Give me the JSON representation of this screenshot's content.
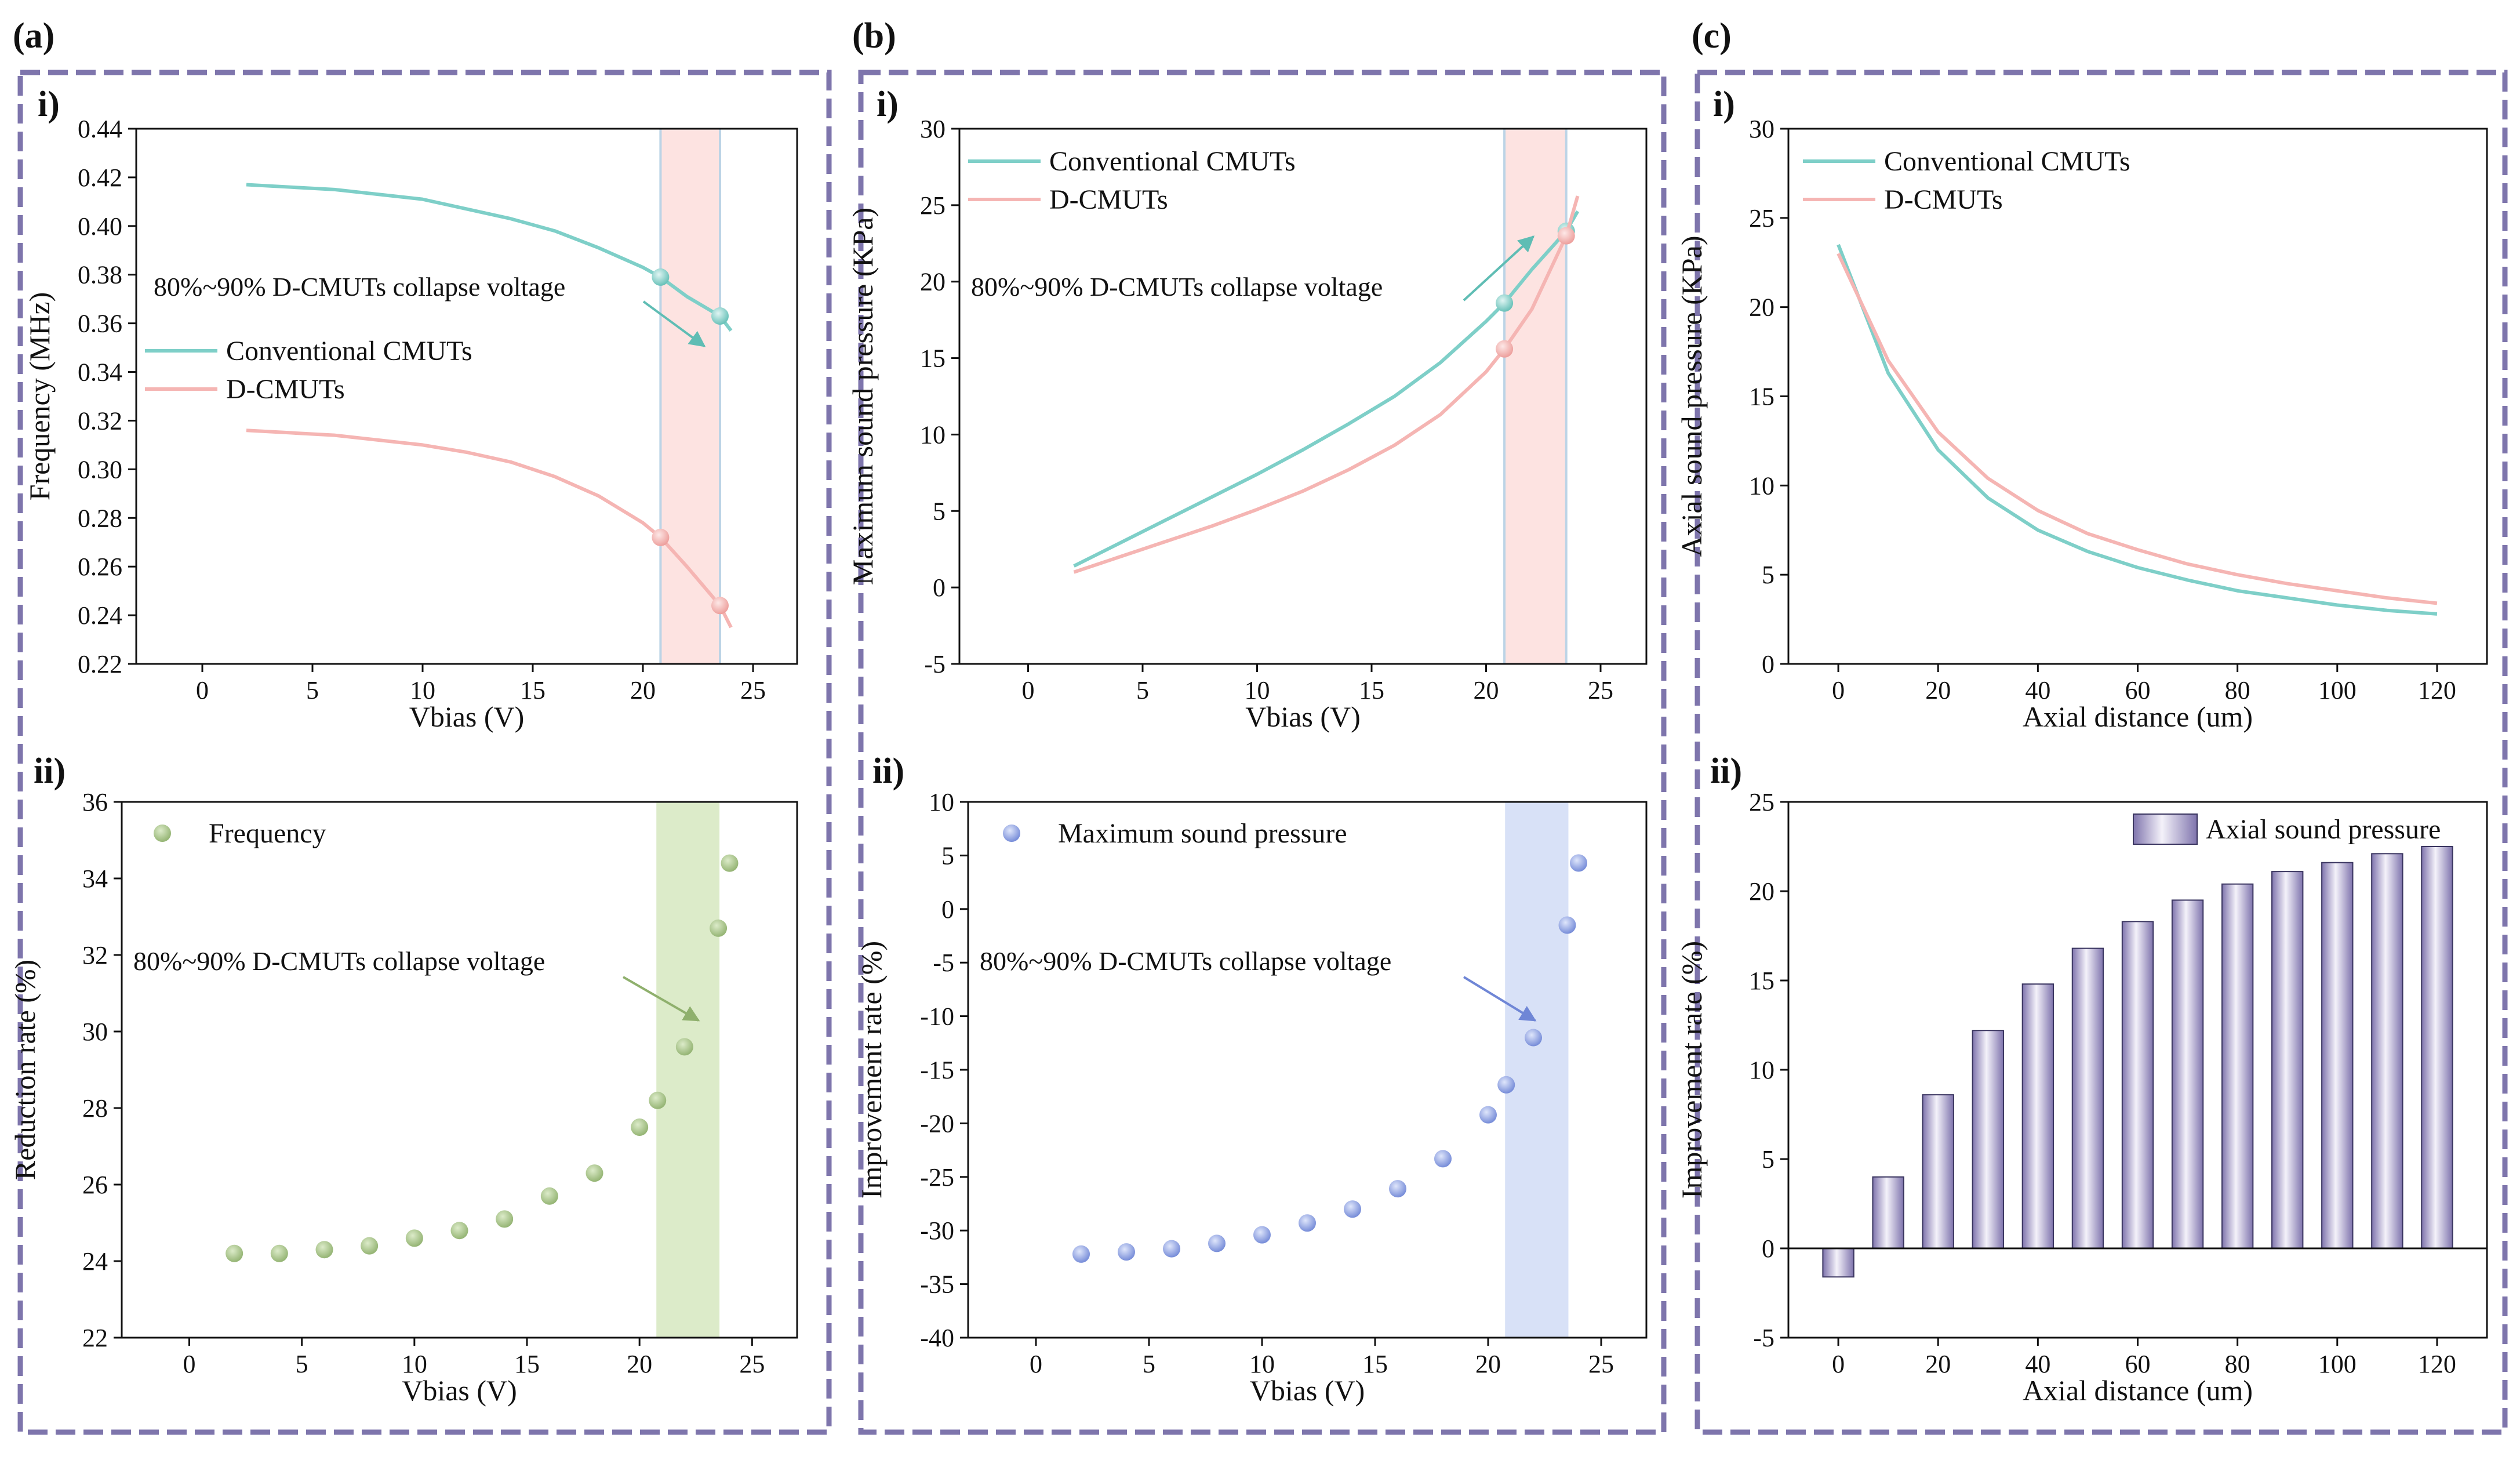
{
  "panels": [
    {
      "letter": "(a)",
      "sub_top": "i)",
      "sub_bottom": "ii)"
    },
    {
      "letter": "(b)",
      "sub_top": "i)",
      "sub_bottom": "ii)"
    },
    {
      "letter": "(c)",
      "sub_top": "i)",
      "sub_bottom": "ii)"
    }
  ],
  "colors": {
    "conventional": "#7ecfc8",
    "dcmut": "#f5b5b3",
    "frequency_dots": "#a7c48a",
    "pressure_dots": "#8fa3e0",
    "bar": "#b7aed3",
    "frame": "#7e75ac",
    "band_red": "#fde3e1",
    "band_green": "#dcebc9",
    "band_blue": "#d8e1f7",
    "band_edge": "#bcd4e6"
  },
  "chart_data": [
    {
      "id": "a-i",
      "type": "line",
      "xlabel": "Vbias (V)",
      "ylabel": "Frequency (MHz)",
      "xlim": [
        -3,
        27
      ],
      "ylim": [
        0.22,
        0.44
      ],
      "xticks": [
        0,
        5,
        10,
        15,
        20,
        25
      ],
      "yticks": [
        0.22,
        0.24,
        0.26,
        0.28,
        0.3,
        0.32,
        0.34,
        0.36,
        0.38,
        0.4,
        0.42,
        0.44
      ],
      "tick_decimals": 2,
      "band": [
        20.8,
        23.5
      ],
      "annotation": "80%~90% D-CMUTs collapse voltage",
      "series": [
        {
          "name": "Conventional CMUTs",
          "color": "conventional",
          "x": [
            2,
            4,
            6,
            8,
            10,
            12,
            14,
            16,
            18,
            20,
            20.8,
            22,
            23.5,
            24
          ],
          "y": [
            0.417,
            0.416,
            0.415,
            0.413,
            0.411,
            0.407,
            0.403,
            0.398,
            0.391,
            0.383,
            0.379,
            0.371,
            0.363,
            0.357
          ],
          "markers": [
            [
              20.8,
              0.379
            ],
            [
              23.5,
              0.363
            ]
          ]
        },
        {
          "name": "D-CMUTs",
          "color": "dcmut",
          "x": [
            2,
            4,
            6,
            8,
            10,
            12,
            14,
            16,
            18,
            20,
            20.8,
            22,
            23.5,
            24
          ],
          "y": [
            0.316,
            0.315,
            0.314,
            0.312,
            0.31,
            0.307,
            0.303,
            0.297,
            0.289,
            0.278,
            0.272,
            0.26,
            0.244,
            0.235
          ],
          "markers": [
            [
              20.8,
              0.272
            ],
            [
              23.5,
              0.244
            ]
          ]
        }
      ]
    },
    {
      "id": "a-ii",
      "type": "scatter",
      "xlabel": "Vbias (V)",
      "ylabel": "Reduction rate (%)",
      "xlim": [
        -3,
        27
      ],
      "ylim": [
        22,
        36
      ],
      "xticks": [
        0,
        5,
        10,
        15,
        20,
        25
      ],
      "yticks": [
        22,
        24,
        26,
        28,
        30,
        32,
        34,
        36
      ],
      "tick_decimals": 0,
      "band": [
        20.8,
        23.5
      ],
      "annotation": "80%~90% D-CMUTs collapse voltage",
      "series": [
        {
          "name": "Frequency",
          "color": "frequency_dots",
          "x": [
            2,
            4,
            6,
            8,
            10,
            12,
            14,
            16,
            18,
            20,
            20.8,
            22,
            23.5,
            24
          ],
          "y": [
            24.2,
            24.2,
            24.3,
            24.4,
            24.6,
            24.8,
            25.1,
            25.7,
            26.3,
            27.5,
            28.2,
            29.6,
            32.7,
            34.4
          ]
        }
      ]
    },
    {
      "id": "b-i",
      "type": "line",
      "xlabel": "Vbias (V)",
      "ylabel": "Maximum sound pressure (KPa)",
      "xlim": [
        -3,
        27
      ],
      "ylim": [
        -5,
        30
      ],
      "xticks": [
        0,
        5,
        10,
        15,
        20,
        25
      ],
      "yticks": [
        -5,
        0,
        5,
        10,
        15,
        20,
        25,
        30
      ],
      "tick_decimals": 0,
      "band": [
        20.8,
        23.5
      ],
      "annotation": "80%~90% D-CMUTs collapse voltage",
      "series": [
        {
          "name": "Conventional CMUTs",
          "color": "conventional",
          "x": [
            2,
            4,
            6,
            8,
            10,
            12,
            14,
            16,
            18,
            20,
            20.8,
            22,
            23.5,
            24
          ],
          "y": [
            1.4,
            2.9,
            4.4,
            5.9,
            7.4,
            9.0,
            10.7,
            12.5,
            14.7,
            17.4,
            18.6,
            20.8,
            23.3,
            24.6
          ],
          "markers": [
            [
              20.8,
              18.6
            ],
            [
              23.5,
              23.3
            ]
          ]
        },
        {
          "name": "D-CMUTs",
          "color": "dcmut",
          "x": [
            2,
            4,
            6,
            8,
            10,
            12,
            14,
            16,
            18,
            20,
            20.8,
            22,
            23.5,
            24
          ],
          "y": [
            1.0,
            2.0,
            3.0,
            4.0,
            5.1,
            6.3,
            7.7,
            9.3,
            11.3,
            14.1,
            15.6,
            18.2,
            23.0,
            25.6
          ],
          "markers": [
            [
              20.8,
              15.6
            ],
            [
              23.5,
              23.0
            ]
          ]
        }
      ]
    },
    {
      "id": "b-ii",
      "type": "scatter",
      "xlabel": "Vbias (V)",
      "ylabel": "Improvement rate (%)",
      "xlim": [
        -3,
        27
      ],
      "ylim": [
        -40,
        10
      ],
      "xticks": [
        0,
        5,
        10,
        15,
        20,
        25
      ],
      "yticks": [
        -40,
        -35,
        -30,
        -25,
        -20,
        -15,
        -10,
        -5,
        0,
        5,
        10
      ],
      "tick_decimals": 0,
      "band": [
        20.8,
        23.5
      ],
      "annotation": "80%~90% D-CMUTs collapse voltage",
      "series": [
        {
          "name": "Maximum sound pressure",
          "color": "pressure_dots",
          "x": [
            2,
            4,
            6,
            8,
            10,
            12,
            14,
            16,
            18,
            20,
            20.8,
            22,
            23.5,
            24
          ],
          "y": [
            -32.2,
            -32.0,
            -31.7,
            -31.2,
            -30.4,
            -29.3,
            -28.0,
            -26.1,
            -23.3,
            -19.2,
            -16.4,
            -12.0,
            -1.5,
            4.3
          ]
        }
      ]
    },
    {
      "id": "c-i",
      "type": "line",
      "xlabel": "Axial distance (um)",
      "ylabel": "Axial sound pressure (KPa)",
      "xlim": [
        -10,
        130
      ],
      "ylim": [
        0,
        30
      ],
      "xticks": [
        0,
        20,
        40,
        60,
        80,
        100,
        120
      ],
      "yticks": [
        0,
        5,
        10,
        15,
        20,
        25,
        30
      ],
      "tick_decimals": 0,
      "series": [
        {
          "name": "Conventional CMUTs",
          "color": "conventional",
          "x": [
            0,
            10,
            20,
            30,
            40,
            50,
            60,
            70,
            80,
            90,
            100,
            110,
            120
          ],
          "y": [
            23.5,
            16.3,
            12.0,
            9.3,
            7.5,
            6.3,
            5.4,
            4.7,
            4.1,
            3.7,
            3.3,
            3.0,
            2.8
          ]
        },
        {
          "name": "D-CMUTs",
          "color": "dcmut",
          "x": [
            0,
            10,
            20,
            30,
            40,
            50,
            60,
            70,
            80,
            90,
            100,
            110,
            120
          ],
          "y": [
            23.0,
            17.0,
            13.0,
            10.4,
            8.6,
            7.3,
            6.4,
            5.6,
            5.0,
            4.5,
            4.1,
            3.7,
            3.4
          ]
        }
      ]
    },
    {
      "id": "c-ii",
      "type": "bar",
      "xlabel": "Axial distance (um)",
      "ylabel": "Improvement rate (%)",
      "xlim": [
        -10,
        130
      ],
      "ylim": [
        -5,
        25
      ],
      "xticks": [
        0,
        20,
        40,
        60,
        80,
        100,
        120
      ],
      "yticks": [
        -5,
        0,
        5,
        10,
        15,
        20,
        25
      ],
      "tick_decimals": 0,
      "series": [
        {
          "name": "Axial sound pressure",
          "color": "bar",
          "x": [
            0,
            10,
            20,
            30,
            40,
            50,
            60,
            70,
            80,
            90,
            100,
            110,
            120
          ],
          "y": [
            -1.6,
            4.0,
            8.6,
            12.2,
            14.8,
            16.8,
            18.3,
            19.5,
            20.4,
            21.1,
            21.6,
            22.1,
            22.5
          ]
        }
      ]
    }
  ]
}
